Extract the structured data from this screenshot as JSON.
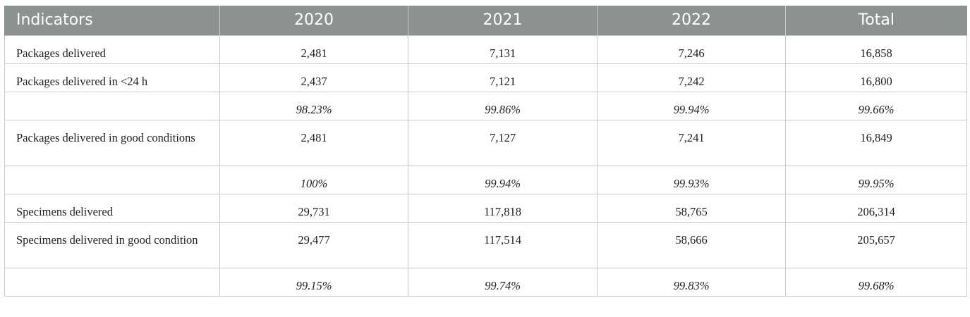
{
  "table": {
    "headers": [
      "Indicators",
      "2020",
      "2021",
      "2022",
      "Total"
    ],
    "rows": [
      {
        "label": "Packages delivered",
        "values": [
          "2,481",
          "7,131",
          "7,246",
          "16,858"
        ],
        "italic": false,
        "tall": false
      },
      {
        "label": "Packages delivered in <24 h",
        "values": [
          "2,437",
          "7,121",
          "7,242",
          "16,800"
        ],
        "italic": false,
        "tall": false
      },
      {
        "label": "",
        "values": [
          "98.23%",
          "99.86%",
          "99.94%",
          "99.66%"
        ],
        "italic": true,
        "tall": false
      },
      {
        "label": "Packages delivered in good conditions",
        "values": [
          "2,481",
          "7,127",
          "7,241",
          "16,849"
        ],
        "italic": false,
        "tall": true
      },
      {
        "label": "",
        "values": [
          "100%",
          "99.94%",
          "99.93%",
          "99.95%"
        ],
        "italic": true,
        "tall": false
      },
      {
        "label": "Specimens delivered",
        "values": [
          "29,731",
          "117,818",
          "58,765",
          "206,314"
        ],
        "italic": false,
        "tall": false
      },
      {
        "label": "Specimens delivered in good condition",
        "values": [
          "29,477",
          "117,514",
          "58,666",
          "205,657"
        ],
        "italic": false,
        "tall": true
      },
      {
        "label": "",
        "values": [
          "99.15%",
          "99.74%",
          "99.83%",
          "99.68%"
        ],
        "italic": true,
        "tall": false
      }
    ]
  },
  "colors": {
    "header_bg": "#8c9192",
    "header_text": "#ffffff",
    "grid": "#c9cccd"
  }
}
